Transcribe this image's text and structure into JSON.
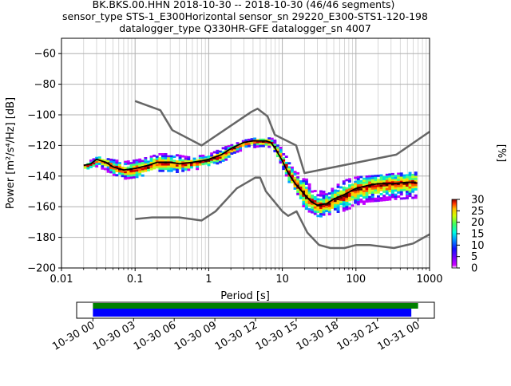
{
  "chart_data": {
    "type": "heatmap",
    "title_lines": [
      "BK.BKS.00.HHN   2018-10-30 -- 2018-10-30  (46/46 segments)",
      "sensor_type STS-1_E300Horizontal sensor_sn 29220_E300-STS1-120-198",
      "datalogger_type Q330HR-GFE datalogger_sn 4007"
    ],
    "xlabel": "Period [s]",
    "ylabel": "Power [m²/s⁴/Hz] [dB]",
    "xscale": "log",
    "xlim": [
      0.01,
      1000
    ],
    "ylim": [
      -200,
      -50
    ],
    "xticks": [
      {
        "value": 0.01,
        "label": "0.01"
      },
      {
        "value": 0.1,
        "label": "0.1"
      },
      {
        "value": 1,
        "label": "1"
      },
      {
        "value": 10,
        "label": "10"
      },
      {
        "value": 100,
        "label": "100"
      },
      {
        "value": 1000,
        "label": "1000"
      }
    ],
    "yticks": [
      {
        "value": -60,
        "label": "−60"
      },
      {
        "value": -80,
        "label": "−80"
      },
      {
        "value": -100,
        "label": "−100"
      },
      {
        "value": -120,
        "label": "−120"
      },
      {
        "value": -140,
        "label": "−140"
      },
      {
        "value": -160,
        "label": "−160"
      },
      {
        "value": -180,
        "label": "−180"
      },
      {
        "value": -200,
        "label": "−200"
      }
    ],
    "grid": true,
    "colorbar": {
      "label": "[%]",
      "range": [
        0,
        30
      ],
      "ticks": [
        {
          "value": 0,
          "label": "0"
        },
        {
          "value": 5,
          "label": "5"
        },
        {
          "value": 10,
          "label": "10"
        },
        {
          "value": 15,
          "label": "15"
        },
        {
          "value": 20,
          "label": "20"
        },
        {
          "value": 25,
          "label": "25"
        },
        {
          "value": 30,
          "label": "30"
        }
      ]
    },
    "mean_curve": [
      [
        0.02,
        -133
      ],
      [
        0.025,
        -132
      ],
      [
        0.03,
        -129
      ],
      [
        0.04,
        -131
      ],
      [
        0.05,
        -134
      ],
      [
        0.07,
        -136
      ],
      [
        0.1,
        -135
      ],
      [
        0.15,
        -133
      ],
      [
        0.2,
        -131
      ],
      [
        0.3,
        -131
      ],
      [
        0.4,
        -132
      ],
      [
        0.6,
        -131
      ],
      [
        0.8,
        -130
      ],
      [
        1,
        -129
      ],
      [
        1.5,
        -126
      ],
      [
        2,
        -122
      ],
      [
        3,
        -118
      ],
      [
        4,
        -117
      ],
      [
        5,
        -117
      ],
      [
        6,
        -117
      ],
      [
        7,
        -118
      ],
      [
        8,
        -122
      ],
      [
        10,
        -130
      ],
      [
        12,
        -138
      ],
      [
        15,
        -145
      ],
      [
        20,
        -152
      ],
      [
        25,
        -157
      ],
      [
        30,
        -159
      ],
      [
        40,
        -158
      ],
      [
        50,
        -155
      ],
      [
        70,
        -152
      ],
      [
        100,
        -148
      ],
      [
        150,
        -146
      ],
      [
        200,
        -145
      ],
      [
        300,
        -145
      ],
      [
        500,
        -144
      ],
      [
        650,
        -144
      ]
    ],
    "psd_band": [
      [
        0.02,
        -135,
        -131
      ],
      [
        0.03,
        -133,
        -127
      ],
      [
        0.05,
        -139,
        -129
      ],
      [
        0.07,
        -141,
        -130
      ],
      [
        0.1,
        -141,
        -129
      ],
      [
        0.15,
        -139,
        -127
      ],
      [
        0.2,
        -137,
        -125
      ],
      [
        0.3,
        -137,
        -125
      ],
      [
        0.5,
        -136,
        -127
      ],
      [
        0.8,
        -134,
        -126
      ],
      [
        1,
        -133,
        -125
      ],
      [
        1.5,
        -130,
        -121
      ],
      [
        2,
        -126,
        -119
      ],
      [
        3,
        -121,
        -116
      ],
      [
        5,
        -120,
        -114
      ],
      [
        7,
        -121,
        -115
      ],
      [
        8,
        -126,
        -117
      ],
      [
        10,
        -135,
        -124
      ],
      [
        12,
        -145,
        -130
      ],
      [
        15,
        -151,
        -137
      ],
      [
        20,
        -162,
        -141
      ],
      [
        25,
        -164,
        -149
      ],
      [
        30,
        -166,
        -149
      ],
      [
        40,
        -165,
        -150
      ],
      [
        50,
        -163,
        -146
      ],
      [
        70,
        -162,
        -142
      ],
      [
        100,
        -158,
        -140
      ],
      [
        200,
        -156,
        -139
      ],
      [
        300,
        -155,
        -138
      ],
      [
        650,
        -154,
        -137
      ]
    ],
    "nhnm": [
      [
        0.1,
        -91
      ],
      [
        0.22,
        -97
      ],
      [
        0.32,
        -110
      ],
      [
        0.8,
        -120
      ],
      [
        3.8,
        -98
      ],
      [
        4.6,
        -96
      ],
      [
        6.3,
        -101
      ],
      [
        7.9,
        -113
      ],
      [
        15.4,
        -120
      ],
      [
        20,
        -138
      ],
      [
        354,
        -126
      ],
      [
        1000,
        -111
      ]
    ],
    "nlnm": [
      [
        0.1,
        -168
      ],
      [
        0.17,
        -167
      ],
      [
        0.4,
        -167
      ],
      [
        0.8,
        -169
      ],
      [
        1.24,
        -163
      ],
      [
        2.4,
        -148
      ],
      [
        4.3,
        -141
      ],
      [
        5,
        -141
      ],
      [
        6,
        -150
      ],
      [
        10,
        -163
      ],
      [
        12,
        -166
      ],
      [
        15.6,
        -163
      ],
      [
        21.9,
        -177
      ],
      [
        31.6,
        -185
      ],
      [
        45,
        -187
      ],
      [
        70,
        -187
      ],
      [
        101,
        -185
      ],
      [
        154,
        -185
      ],
      [
        328,
        -187
      ],
      [
        600,
        -184
      ],
      [
        1000,
        -178
      ]
    ],
    "time_axis": {
      "ticks": [
        {
          "value": 0,
          "label": "10-30 00"
        },
        {
          "value": 3,
          "label": "10-30 03"
        },
        {
          "value": 6,
          "label": "10-30 06"
        },
        {
          "value": 9,
          "label": "10-30 09"
        },
        {
          "value": 12,
          "label": "10-30 12"
        },
        {
          "value": 15,
          "label": "10-30 15"
        },
        {
          "value": 18,
          "label": "10-30 18"
        },
        {
          "value": 21,
          "label": "10-30 21"
        },
        {
          "value": 24,
          "label": "10-31 00"
        }
      ],
      "range": [
        -1.2,
        25.2
      ],
      "coverage_green": [
        0,
        24
      ],
      "coverage_blue": [
        0,
        23.5
      ],
      "colors": {
        "green": "#008000",
        "blue": "#0000ff"
      }
    },
    "colors": {
      "noise_model": "#666666",
      "mean": "#000000"
    }
  }
}
